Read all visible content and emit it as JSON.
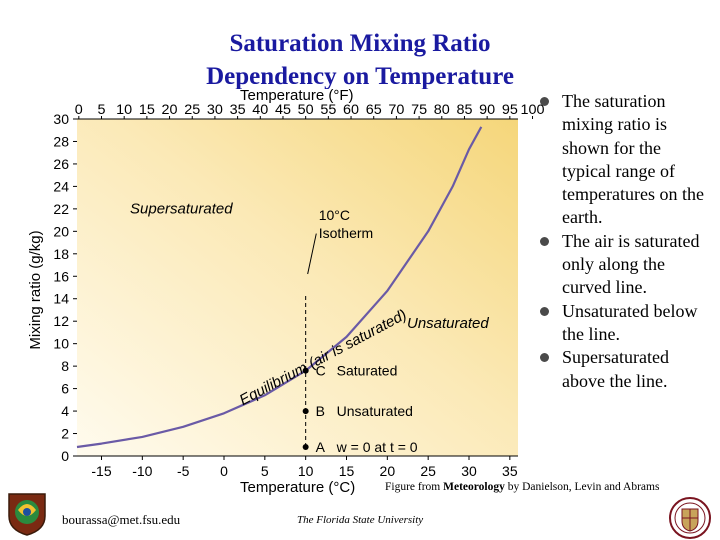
{
  "title": {
    "line1": "Saturation Mixing Ratio",
    "line2": "Dependency on Temperature"
  },
  "bullets": [
    "The saturation mixing ratio is shown for the typical range of temperatures on the earth.",
    "The air is saturated only along the curved line.",
    "Unsaturated below the line.",
    "Supersaturated above the line."
  ],
  "caption": {
    "prefix": "Figure from ",
    "book": "Meteorology",
    "suffix": " by Danielson, Levin and Abrams"
  },
  "footer": {
    "email": "bourassa@met.fsu.edu",
    "university": "The Florida State University"
  },
  "colors": {
    "title": "#1a1aa0",
    "curve": "#6a5aa6",
    "gradient_top_right": "#f6d97e",
    "gradient_bottom_left": "#fffaeb"
  },
  "chart_data": {
    "type": "line",
    "title": "",
    "xlabel": "Temperature (°C)",
    "x2label": "Temperature (°F)",
    "ylabel": "Mixing ratio (g/kg)",
    "xlim": [
      -18,
      36
    ],
    "ylim": [
      0,
      30
    ],
    "x_ticks": [
      "-15",
      "-10",
      "-5",
      "0",
      "5",
      "10",
      "15",
      "20",
      "25",
      "30",
      "35"
    ],
    "x2_ticks": [
      "0",
      "5",
      "10",
      "15",
      "20",
      "25",
      "30",
      "35",
      "40",
      "45",
      "50",
      "55",
      "60",
      "65",
      "70",
      "75",
      "80",
      "85",
      "90",
      "95",
      "100"
    ],
    "y_ticks": [
      "0",
      "2",
      "4",
      "6",
      "8",
      "10",
      "12",
      "14",
      "16",
      "18",
      "20",
      "22",
      "24",
      "26",
      "28",
      "30"
    ],
    "series": [
      {
        "name": "Saturation mixing ratio",
        "x": [
          -18,
          -15,
          -10,
          -5,
          0,
          5,
          10,
          15,
          20,
          25,
          28,
          30,
          31.5
        ],
        "y": [
          0.8,
          1.1,
          1.7,
          2.6,
          3.8,
          5.4,
          7.6,
          10.6,
          14.7,
          20.0,
          24.0,
          27.3,
          29.3
        ]
      }
    ],
    "points": [
      {
        "x": 10,
        "y": 7.6,
        "label": "C",
        "desc": "Saturated"
      },
      {
        "x": 10,
        "y": 4,
        "label": "B",
        "desc": "Unsaturated"
      },
      {
        "x": 10,
        "y": 0.8,
        "label": "A",
        "desc": "w = 0 at t = 0"
      }
    ],
    "annotations": [
      {
        "text": "Supersaturated",
        "style": "italic"
      },
      {
        "text": "Unsaturated",
        "style": "italic"
      },
      {
        "text": "Equilibrium (air is saturated)",
        "style": "italic"
      },
      {
        "text": "10°C",
        "style": "normal"
      },
      {
        "text": "Isotherm",
        "style": "normal"
      }
    ]
  }
}
